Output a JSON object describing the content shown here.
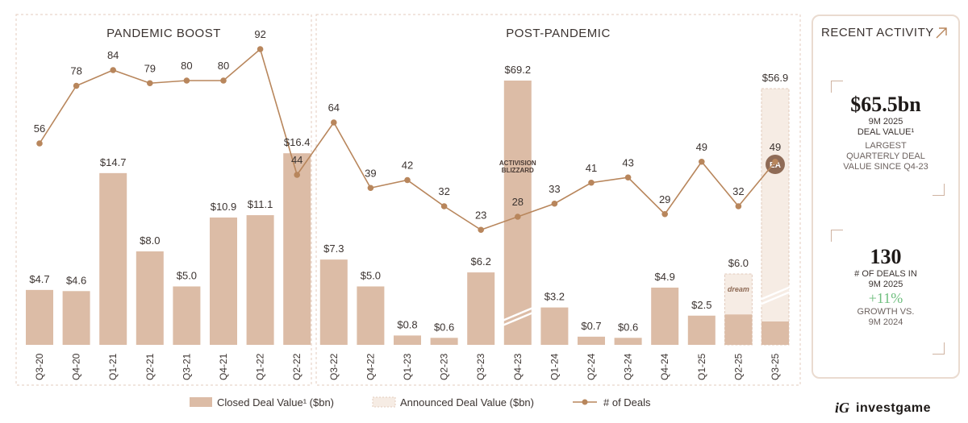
{
  "chart_data": {
    "type": "bar",
    "categories": [
      "Q3-20",
      "Q4-20",
      "Q1-21",
      "Q2-21",
      "Q3-21",
      "Q4-21",
      "Q1-22",
      "Q2-22",
      "Q3-22",
      "Q4-22",
      "Q1-23",
      "Q2-23",
      "Q3-23",
      "Q4-23",
      "Q1-24",
      "Q2-24",
      "Q3-24",
      "Q4-24",
      "Q1-25",
      "Q2-25",
      "Q3-25"
    ],
    "panels": [
      {
        "title": "PANDEMIC BOOST",
        "from": 0,
        "to": 7
      },
      {
        "title": "POST-PANDEMIC",
        "from": 8,
        "to": 20
      }
    ],
    "series": [
      {
        "name": "Closed Deal Value¹ ($bn)",
        "values": [
          4.7,
          4.6,
          14.7,
          8.0,
          5.0,
          10.9,
          11.1,
          16.4,
          7.3,
          5.0,
          0.8,
          0.6,
          6.2,
          null,
          3.2,
          0.7,
          0.6,
          4.9,
          2.5,
          null,
          null
        ],
        "color": "#dcbca6"
      },
      {
        "name": "Announced Deal Value ($bn)",
        "values": [
          null,
          null,
          null,
          null,
          null,
          null,
          null,
          null,
          null,
          null,
          null,
          null,
          null,
          null,
          null,
          null,
          null,
          null,
          null,
          6.0,
          56.9
        ],
        "color": "#f6ece4"
      },
      {
        "name": "# of Deals",
        "values": [
          56,
          78,
          84,
          79,
          80,
          80,
          92,
          44,
          64,
          39,
          42,
          32,
          23,
          28,
          33,
          41,
          43,
          29,
          49,
          32,
          49
        ],
        "color": "#b8865c"
      }
    ],
    "bar_labels": [
      "$4.7",
      "$4.6",
      "$14.7",
      "$8.0",
      "$5.0",
      "$10.9",
      "$11.1",
      "$16.4",
      "$7.3",
      "$5.0",
      "$0.8",
      "$0.6",
      "$6.2",
      "$69.2",
      "$3.2",
      "$0.7",
      "$0.6",
      "$4.9",
      "$2.5",
      "$6.0",
      "$56.9"
    ],
    "broken_bars": [
      {
        "index": 13,
        "total": 69.2,
        "type": "closed",
        "logo": "ACTIVISION BLIZZARD"
      },
      {
        "index": 19,
        "total": 6.0,
        "closed_part": 2.6,
        "type": "mixed",
        "logo": "dream"
      },
      {
        "index": 20,
        "total": 56.9,
        "closed_part": 2.0,
        "type": "mixed",
        "logo": "EA"
      }
    ],
    "legend_position": "bottom",
    "grid": false
  },
  "activity": {
    "title": "RECENT ACTIVITY",
    "value_big": "$65.5bn",
    "value_label": "9M 2025",
    "value_label2": "DEAL VALUE¹",
    "value_note": [
      "LARGEST",
      "QUARTERLY DEAL",
      "VALUE SINCE Q4-23"
    ],
    "deals_big": "130",
    "deals_label": [
      "# OF DEALS IN",
      "9M 2025"
    ],
    "growth": "+11%",
    "growth_note": [
      "GROWTH VS.",
      "9M 2024"
    ]
  },
  "brand": {
    "mark": "iG",
    "name": "investgame"
  },
  "colors": {
    "closed": "#dcbca6",
    "announced": "#f6ece4",
    "deals": "#b8865c",
    "frame": "#e3cbbd"
  }
}
